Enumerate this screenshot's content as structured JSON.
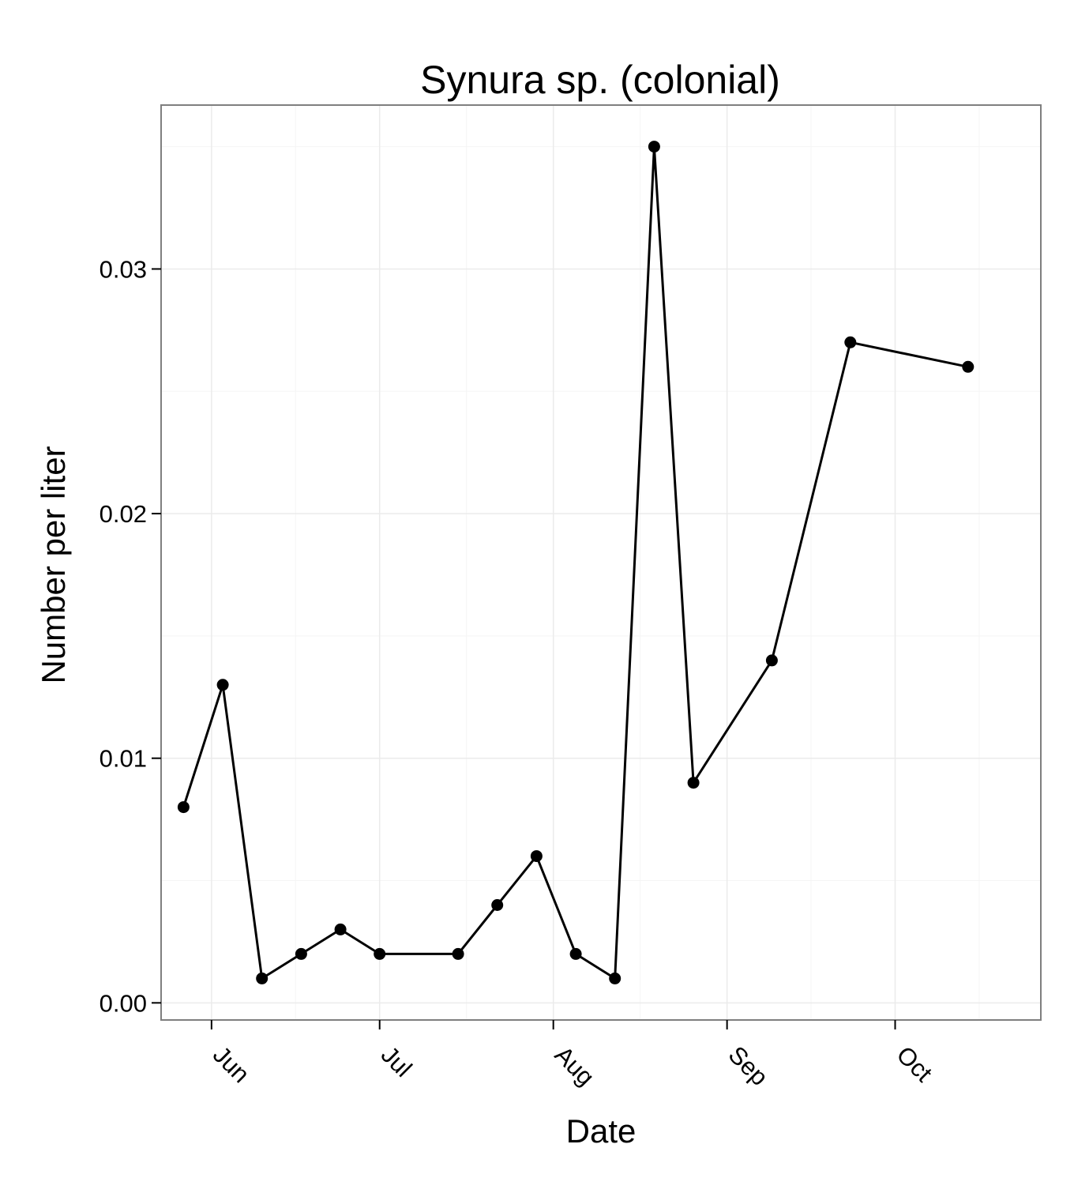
{
  "chart_data": {
    "type": "line",
    "title": "Synura sp. (colonial)",
    "xlabel": "Date",
    "ylabel": "Number per liter",
    "x_axis_type": "date",
    "xlim": [
      "2012-05-23",
      "2012-10-27"
    ],
    "ylim": [
      -0.0007,
      0.0367
    ],
    "x_ticks": [
      {
        "date": "2012-06-01",
        "label": "Jun"
      },
      {
        "date": "2012-07-01",
        "label": "Jul"
      },
      {
        "date": "2012-08-01",
        "label": "Aug"
      },
      {
        "date": "2012-09-01",
        "label": "Sep"
      },
      {
        "date": "2012-10-01",
        "label": "Oct"
      }
    ],
    "y_ticks": [
      {
        "value": 0.0,
        "label": "0.00"
      },
      {
        "value": 0.01,
        "label": "0.01"
      },
      {
        "value": 0.02,
        "label": "0.02"
      },
      {
        "value": 0.03,
        "label": "0.03"
      }
    ],
    "grid": true,
    "series": [
      {
        "color": "#000000",
        "points": [
          {
            "x": "2012-05-27",
            "y": 0.008
          },
          {
            "x": "2012-06-03",
            "y": 0.013
          },
          {
            "x": "2012-06-10",
            "y": 0.001
          },
          {
            "x": "2012-06-17",
            "y": 0.002
          },
          {
            "x": "2012-06-24",
            "y": 0.003
          },
          {
            "x": "2012-07-01",
            "y": 0.002
          },
          {
            "x": "2012-07-15",
            "y": 0.002
          },
          {
            "x": "2012-07-22",
            "y": 0.004
          },
          {
            "x": "2012-07-29",
            "y": 0.006
          },
          {
            "x": "2012-08-05",
            "y": 0.002
          },
          {
            "x": "2012-08-12",
            "y": 0.001
          },
          {
            "x": "2012-08-19",
            "y": 0.035
          },
          {
            "x": "2012-08-26",
            "y": 0.009
          },
          {
            "x": "2012-09-09",
            "y": 0.014
          },
          {
            "x": "2012-09-23",
            "y": 0.027
          },
          {
            "x": "2012-10-14",
            "y": 0.026
          }
        ]
      }
    ]
  }
}
